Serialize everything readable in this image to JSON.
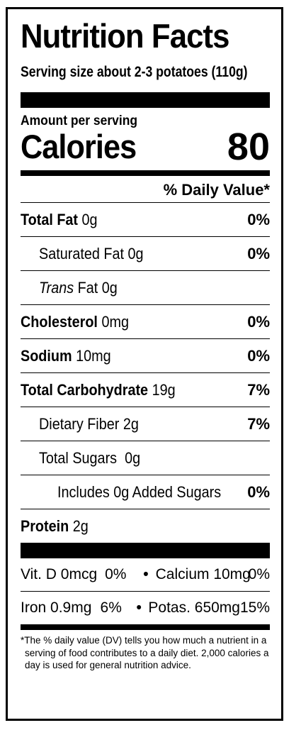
{
  "label": {
    "title": "Nutrition Facts",
    "serving": "Serving size about 2-3 potatoes (110g)",
    "amount_per_serving": "Amount per serving",
    "calories_label": "Calories",
    "calories_value": "80",
    "daily_value_header": "% Daily Value*",
    "rows": [
      {
        "name": "Total Fat",
        "amount": "0g",
        "dv": "0%"
      },
      {
        "name": "Saturated Fat",
        "amount": "0g",
        "dv": "0%"
      },
      {
        "name_italic": "Trans",
        "name": "Fat",
        "amount": "0g",
        "dv": ""
      },
      {
        "name": "Cholesterol",
        "amount": "0mg",
        "dv": "0%"
      },
      {
        "name": "Sodium",
        "amount": "10mg",
        "dv": "0%"
      },
      {
        "name": "Total Carbohydrate",
        "amount": "19g",
        "dv": "7%"
      },
      {
        "name": "Dietary Fiber",
        "amount": "2g",
        "dv": "7%"
      },
      {
        "name": "Total Sugars",
        "amount": "0g",
        "dv": ""
      },
      {
        "name": "Includes 0g Added Sugars",
        "amount": "",
        "dv": "0%"
      },
      {
        "name": "Protein",
        "amount": "2g",
        "dv": ""
      }
    ],
    "vitamins": [
      {
        "a_name": "Vit. D 0mcg",
        "a_dv": "0%",
        "b_name": "Calcium 10mg",
        "b_dv": "0%"
      },
      {
        "a_name": "Iron 0.9mg",
        "a_dv": "6%",
        "b_name": "Potas. 650mg",
        "b_dv": "15%"
      }
    ],
    "bullet": "•",
    "footnote": "*The % daily value (DV) tells you how much a nutrient in a serving of food contributes to a daily diet. 2,000 calories a day is used for general nutrition advice."
  }
}
